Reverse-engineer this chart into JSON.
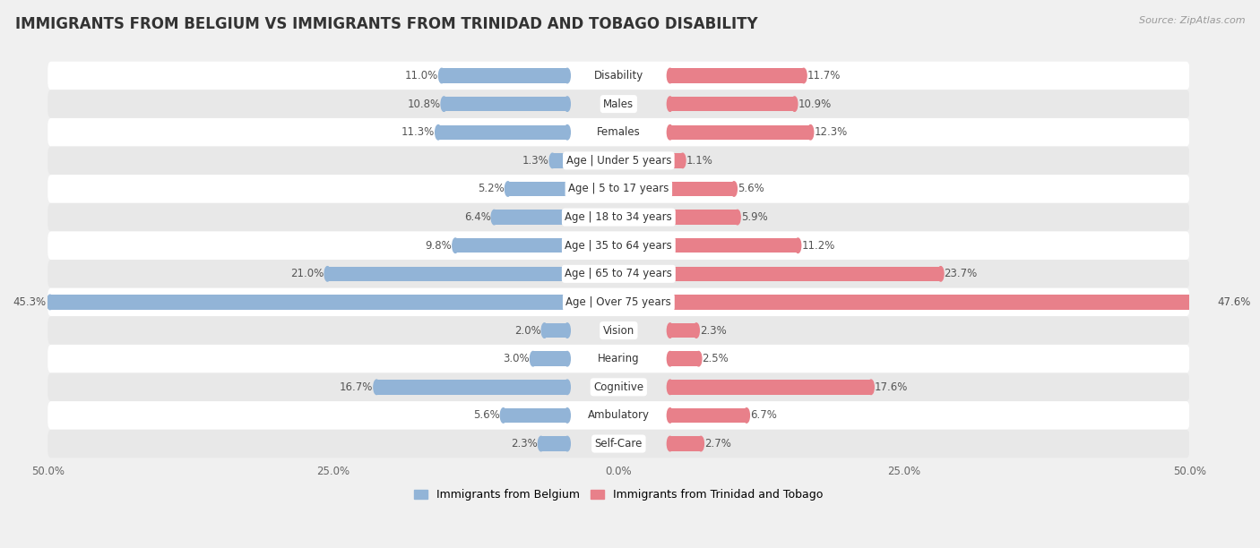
{
  "title": "IMMIGRANTS FROM BELGIUM VS IMMIGRANTS FROM TRINIDAD AND TOBAGO DISABILITY",
  "source": "Source: ZipAtlas.com",
  "categories": [
    "Disability",
    "Males",
    "Females",
    "Age | Under 5 years",
    "Age | 5 to 17 years",
    "Age | 18 to 34 years",
    "Age | 35 to 64 years",
    "Age | 65 to 74 years",
    "Age | Over 75 years",
    "Vision",
    "Hearing",
    "Cognitive",
    "Ambulatory",
    "Self-Care"
  ],
  "belgium_values": [
    11.0,
    10.8,
    11.3,
    1.3,
    5.2,
    6.4,
    9.8,
    21.0,
    45.3,
    2.0,
    3.0,
    16.7,
    5.6,
    2.3
  ],
  "trinidad_values": [
    11.7,
    10.9,
    12.3,
    1.1,
    5.6,
    5.9,
    11.2,
    23.7,
    47.6,
    2.3,
    2.5,
    17.6,
    6.7,
    2.7
  ],
  "belgium_color": "#92b4d7",
  "trinidad_color": "#e8808a",
  "axis_max": 50.0,
  "legend_belgium": "Immigrants from Belgium",
  "legend_trinidad": "Immigrants from Trinidad and Tobago",
  "bg_color": "#f0f0f0",
  "row_color_odd": "#ffffff",
  "row_color_even": "#e8e8e8",
  "title_fontsize": 12,
  "label_fontsize": 8.5,
  "tick_fontsize": 8.5,
  "value_fontsize": 8.5
}
